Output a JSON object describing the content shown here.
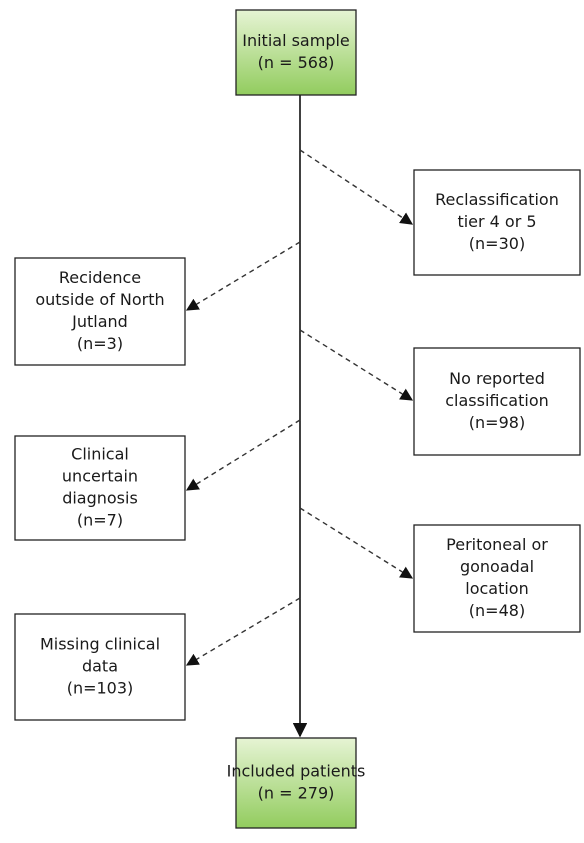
{
  "nodes": [
    {
      "id": "initial",
      "lines": [
        "Initial sample",
        "(n = 568)"
      ]
    },
    {
      "id": "reclass",
      "lines": [
        "Reclassification",
        "tier 4 or 5",
        "(n=30)"
      ]
    },
    {
      "id": "residence",
      "lines": [
        "Recidence",
        "outside of North",
        "Jutland",
        "(n=3)"
      ]
    },
    {
      "id": "noclass",
      "lines": [
        "No reported",
        "classification",
        "(n=98)"
      ]
    },
    {
      "id": "clinical",
      "lines": [
        "Clinical",
        "uncertain",
        "diagnosis",
        "(n=7)"
      ]
    },
    {
      "id": "peritoneal",
      "lines": [
        "Peritoneal or",
        "gonoadal",
        "location",
        "(n=48)"
      ]
    },
    {
      "id": "missing",
      "lines": [
        "Missing clinical",
        "data",
        "(n=103)"
      ]
    },
    {
      "id": "included",
      "lines": [
        "Included patients",
        "(n = 279)"
      ]
    }
  ]
}
